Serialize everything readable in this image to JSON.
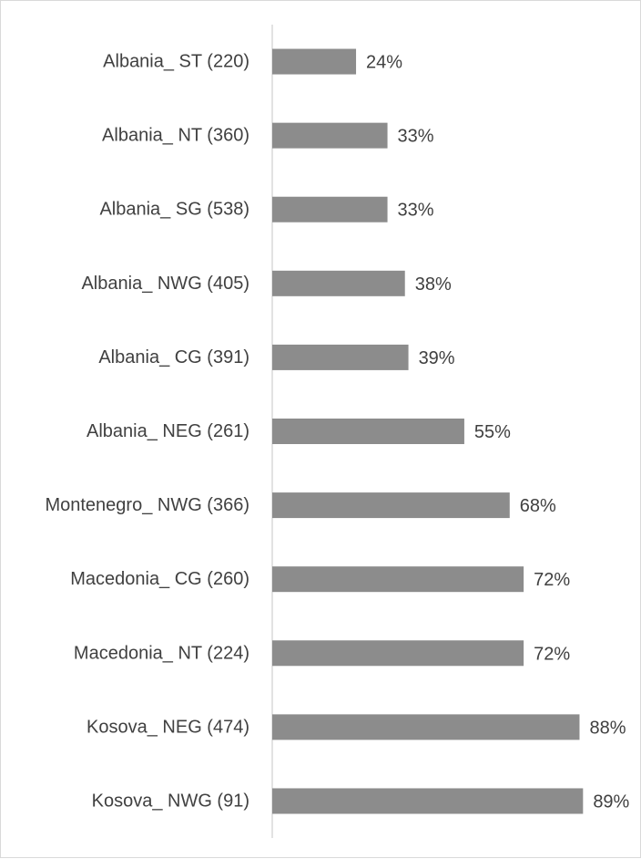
{
  "chart_data": {
    "type": "bar",
    "orientation": "horizontal",
    "title": "",
    "xlabel": "",
    "ylabel": "",
    "categories": [
      "Albania_ ST (220)",
      "Albania_ NT (360)",
      "Albania_ SG (538)",
      "Albania_ NWG (405)",
      "Albania_ CG (391)",
      "Albania_ NEG (261)",
      "Montenegro_ NWG (366)",
      "Macedonia_ CG (260)",
      "Macedonia_ NT (224)",
      "Kosova_ NEG (474)",
      "Kosova_ NWG (91)"
    ],
    "values": [
      24,
      33,
      33,
      38,
      39,
      55,
      68,
      72,
      72,
      88,
      89
    ],
    "data_labels": [
      "24%",
      "33%",
      "33%",
      "38%",
      "39%",
      "55%",
      "68%",
      "72%",
      "72%",
      "88%",
      "89%"
    ],
    "xlim": [
      0,
      100
    ],
    "grid": false,
    "legend": "none",
    "bar_color": "#8c8c8c",
    "axis_color": "#d9d9d9",
    "text_color": "#404040"
  }
}
